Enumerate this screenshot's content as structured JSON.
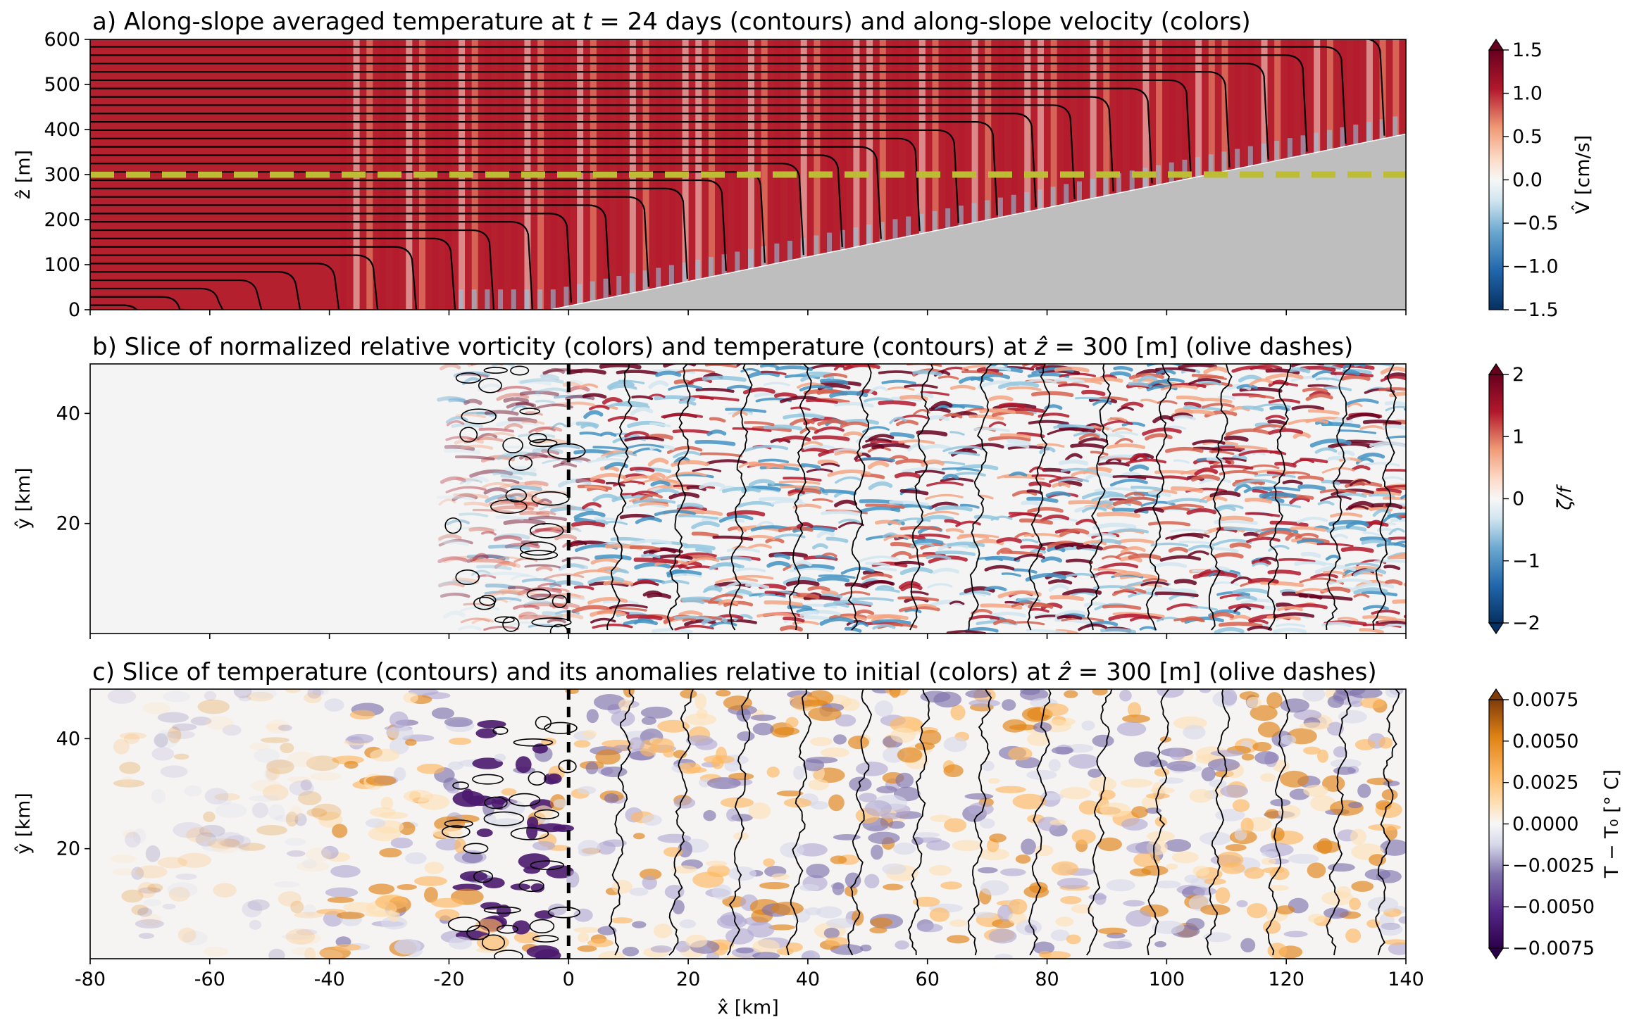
{
  "chart_data": [
    {
      "type": "heatmap",
      "panel": "a",
      "title": "a) Along-slope averaged temperature at t = 24 days (contours) and along-slope velocity (colors)",
      "xlabel": "",
      "ylabel": "ẑ [m]",
      "xlim": [
        -80,
        140
      ],
      "ylim": [
        0,
        600
      ],
      "yticks": [
        "0",
        "100",
        "200",
        "300",
        "400",
        "500",
        "600"
      ],
      "colorbar": {
        "label": "V̂ [cm/s]",
        "range": [
          -1.5,
          1.5
        ],
        "ticks": [
          "−1.5",
          "−1.0",
          "−0.5",
          "0.0",
          "0.5",
          "1.0",
          "1.5"
        ],
        "colormap": "RdBu_r"
      },
      "annotations": {
        "olive_dashed_line_z": 300,
        "slope_bottom": {
          "x_start": -3,
          "z_start": 0,
          "x_end": 140,
          "z_end": 390
        },
        "topography_color": "#bebebe",
        "olive_color": "#bdbd35"
      }
    },
    {
      "type": "heatmap",
      "panel": "b",
      "title": "b) Slice of normalized relative vorticity (colors) and temperature (contours) at ẑ = 300 [m] (olive dashes)",
      "xlabel": "",
      "ylabel": "ŷ [km]",
      "xlim": [
        -80,
        140
      ],
      "ylim": [
        0,
        49
      ],
      "yticks": [
        "20",
        "40"
      ],
      "colorbar": {
        "label": "ζ/f",
        "range": [
          -2,
          2
        ],
        "ticks": [
          "−2",
          "−1",
          "0",
          "1",
          "2"
        ],
        "colormap": "RdBu_r"
      },
      "annotations": {
        "black_dashed_line_x": 0
      }
    },
    {
      "type": "heatmap",
      "panel": "c",
      "title": "c) Slice of temperature (contours) and its anomalies relative to initial (colors) at ẑ = 300 [m] (olive dashes)",
      "xlabel": "x̂ [km]",
      "ylabel": "ŷ [km]",
      "xlim": [
        -80,
        140
      ],
      "ylim": [
        0,
        49
      ],
      "xticks": [
        "-80",
        "-60",
        "-40",
        "-20",
        "0",
        "20",
        "40",
        "60",
        "80",
        "100",
        "120",
        "140"
      ],
      "yticks": [
        "20",
        "40"
      ],
      "colorbar": {
        "label": "T − T₀ [° C]",
        "range": [
          -0.0075,
          0.0075
        ],
        "ticks": [
          "−0.0075",
          "−0.0050",
          "−0.0025",
          "0.0000",
          "0.0025",
          "0.0050",
          "0.0075"
        ],
        "colormap": "PuOr_r"
      },
      "annotations": {
        "black_dashed_line_x": 0
      }
    }
  ]
}
